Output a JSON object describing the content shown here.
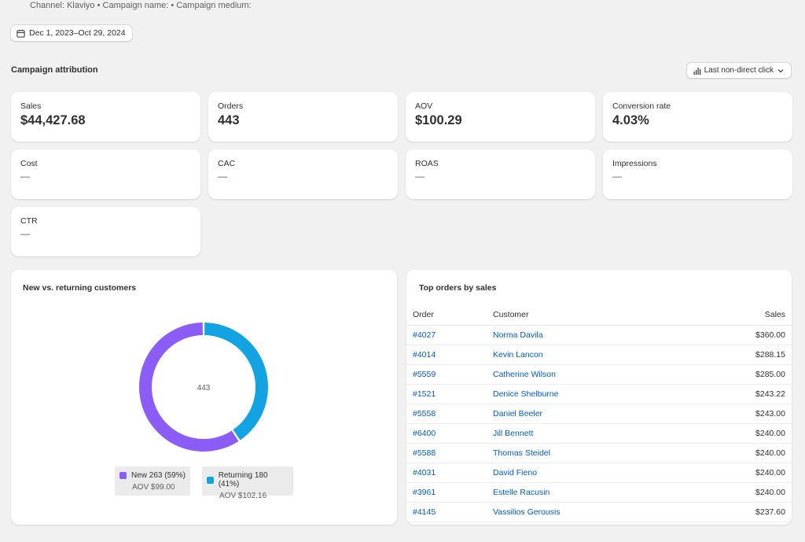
{
  "header": {
    "filters_line": "Channel: Klaviyo • Campaign name: • Campaign medium:",
    "date_range": "Dec 1, 2023–Oct 29, 2024"
  },
  "attribution": {
    "title": "Campaign attribution",
    "model_label": "Last non-direct click"
  },
  "metrics": [
    {
      "label": "Sales",
      "value": "$44,427.68"
    },
    {
      "label": "Orders",
      "value": "443"
    },
    {
      "label": "AOV",
      "value": "$100.29"
    },
    {
      "label": "Conversion rate",
      "value": "4.03%"
    },
    {
      "label": "Cost",
      "value": "—"
    },
    {
      "label": "CAC",
      "value": "—"
    },
    {
      "label": "ROAS",
      "value": "—"
    },
    {
      "label": "Impressions",
      "value": "—"
    },
    {
      "label": "CTR",
      "value": "—"
    }
  ],
  "customers": {
    "title": "New vs. returning customers",
    "center_label": "443",
    "legend": [
      {
        "label": "New 263 (59%)",
        "aov": "AOV $99.00",
        "color": "#8b5cf6"
      },
      {
        "label": "Returning 180 (41%)",
        "aov": "AOV $102.16",
        "color": "#13a3e3"
      }
    ]
  },
  "chart_data": {
    "type": "pie",
    "categories": [
      "New",
      "Returning"
    ],
    "values": [
      263,
      180
    ],
    "colors": [
      "#8b5cf6",
      "#13a3e3"
    ]
  },
  "orders": {
    "title": "Top orders by sales",
    "columns": [
      "Order",
      "Customer",
      "Sales"
    ],
    "rows": [
      {
        "order": "#4027",
        "customer": "Norma Davila",
        "sales": "$360.00"
      },
      {
        "order": "#4014",
        "customer": "Kevin Lancon",
        "sales": "$288.15"
      },
      {
        "order": "#5559",
        "customer": "Catherine Wilson",
        "sales": "$285.00"
      },
      {
        "order": "#1521",
        "customer": "Denice Shelburne",
        "sales": "$243.22"
      },
      {
        "order": "#5558",
        "customer": "Daniel Beeler",
        "sales": "$243.00"
      },
      {
        "order": "#6400",
        "customer": "Jill Bennett",
        "sales": "$240.00"
      },
      {
        "order": "#5588",
        "customer": "Thomas Steidel",
        "sales": "$240.00"
      },
      {
        "order": "#4031",
        "customer": "David Fieno",
        "sales": "$240.00"
      },
      {
        "order": "#3961",
        "customer": "Estelle Racusin",
        "sales": "$240.00"
      },
      {
        "order": "#4145",
        "customer": "Vassilios Gerousis",
        "sales": "$237.60"
      }
    ]
  }
}
